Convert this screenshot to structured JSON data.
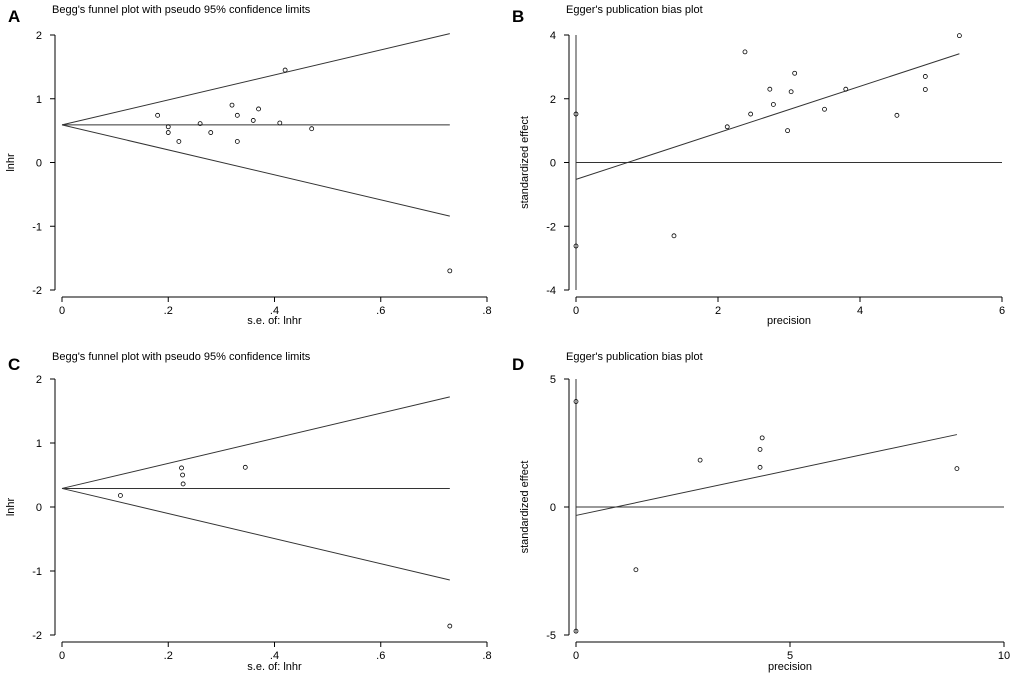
{
  "chart_data": [
    {
      "id": "A",
      "type": "scatter",
      "panel_label": "A",
      "title": "Begg's funnel plot with pseudo 95% confidence limits",
      "xlabel": "s.e. of: lnhr",
      "ylabel": "lnhr",
      "xlim": [
        0,
        0.8
      ],
      "ylim": [
        -2,
        2
      ],
      "xticks": [
        0,
        0.2,
        0.4,
        0.6,
        0.8
      ],
      "xtick_labels": [
        "0",
        ".2",
        ".4",
        ".6",
        ".8"
      ],
      "yticks": [
        -2,
        -1,
        0,
        1,
        2
      ],
      "ytick_labels": [
        "-2",
        "-1",
        "0",
        "1",
        "2"
      ],
      "pooled": 0.59,
      "funnel_se_max": 0.73,
      "points": [
        {
          "x": 0.18,
          "y": 0.74
        },
        {
          "x": 0.2,
          "y": 0.56
        },
        {
          "x": 0.2,
          "y": 0.47
        },
        {
          "x": 0.22,
          "y": 0.33
        },
        {
          "x": 0.26,
          "y": 0.61
        },
        {
          "x": 0.28,
          "y": 0.47
        },
        {
          "x": 0.32,
          "y": 0.9
        },
        {
          "x": 0.33,
          "y": 0.74
        },
        {
          "x": 0.33,
          "y": 0.33
        },
        {
          "x": 0.36,
          "y": 0.66
        },
        {
          "x": 0.37,
          "y": 0.84
        },
        {
          "x": 0.41,
          "y": 0.62
        },
        {
          "x": 0.42,
          "y": 1.45
        },
        {
          "x": 0.47,
          "y": 0.53
        },
        {
          "x": 0.73,
          "y": -1.7
        }
      ]
    },
    {
      "id": "B",
      "type": "scatter",
      "panel_label": "B",
      "title": "Egger's publication bias plot",
      "xlabel": "precision",
      "ylabel": "standardized effect",
      "xlim": [
        0,
        6
      ],
      "ylim": [
        -4,
        4
      ],
      "xticks": [
        0,
        2,
        4,
        6
      ],
      "xtick_labels": [
        "0",
        "2",
        "4",
        "6"
      ],
      "yticks": [
        -4,
        -2,
        0,
        2,
        4
      ],
      "ytick_labels": [
        "-4",
        "-2",
        "0",
        "2",
        "4"
      ],
      "ci_bar": {
        "x": 0,
        "y_low": -4.0,
        "y_high": 4.0
      },
      "regression": {
        "intercept": -0.53,
        "slope": 0.73,
        "x_start": 0,
        "x_end": 5.4
      },
      "points": [
        {
          "x": 0.0,
          "y": 1.52
        },
        {
          "x": 0.0,
          "y": -2.62
        },
        {
          "x": 1.38,
          "y": -2.3
        },
        {
          "x": 2.13,
          "y": 1.12
        },
        {
          "x": 2.38,
          "y": 3.47
        },
        {
          "x": 2.46,
          "y": 1.52
        },
        {
          "x": 2.73,
          "y": 2.3
        },
        {
          "x": 2.78,
          "y": 1.82
        },
        {
          "x": 2.98,
          "y": 1.0
        },
        {
          "x": 3.03,
          "y": 2.22
        },
        {
          "x": 3.08,
          "y": 2.8
        },
        {
          "x": 3.5,
          "y": 1.67
        },
        {
          "x": 3.8,
          "y": 2.3
        },
        {
          "x": 4.52,
          "y": 1.48
        },
        {
          "x": 4.92,
          "y": 2.7
        },
        {
          "x": 4.92,
          "y": 2.29
        },
        {
          "x": 5.4,
          "y": 3.98
        }
      ]
    },
    {
      "id": "C",
      "type": "scatter",
      "panel_label": "C",
      "title": "Begg's funnel plot with pseudo 95% confidence limits",
      "xlabel": "s.e. of: lnhr",
      "ylabel": "lnhr",
      "xlim": [
        0,
        0.8
      ],
      "ylim": [
        -2,
        2
      ],
      "xticks": [
        0,
        0.2,
        0.4,
        0.6,
        0.8
      ],
      "xtick_labels": [
        "0",
        ".2",
        ".4",
        ".6",
        ".8"
      ],
      "yticks": [
        -2,
        -1,
        0,
        1,
        2
      ],
      "ytick_labels": [
        "-2",
        "-1",
        "0",
        "1",
        "2"
      ],
      "pooled": 0.29,
      "funnel_se_max": 0.73,
      "points": [
        {
          "x": 0.11,
          "y": 0.18
        },
        {
          "x": 0.225,
          "y": 0.61
        },
        {
          "x": 0.227,
          "y": 0.5
        },
        {
          "x": 0.228,
          "y": 0.36
        },
        {
          "x": 0.345,
          "y": 0.62
        },
        {
          "x": 0.73,
          "y": -1.86
        }
      ]
    },
    {
      "id": "D",
      "type": "scatter",
      "panel_label": "D",
      "title": "Egger's publication bias plot",
      "xlabel": "precision",
      "ylabel": "standardized effect",
      "xlim": [
        0,
        10
      ],
      "ylim": [
        -5,
        5
      ],
      "xticks": [
        0,
        5,
        10
      ],
      "xtick_labels": [
        "0",
        "5",
        "10"
      ],
      "yticks": [
        -5,
        0,
        5
      ],
      "ytick_labels": [
        "-5",
        "0",
        "5"
      ],
      "ci_bar": {
        "x": 0,
        "y_low": -4.9,
        "y_high": 5.0
      },
      "regression": {
        "intercept": -0.33,
        "slope": 0.355,
        "x_start": 0,
        "x_end": 8.9
      },
      "points": [
        {
          "x": 0.0,
          "y": 4.12
        },
        {
          "x": 0.0,
          "y": -4.85
        },
        {
          "x": 1.4,
          "y": -2.45
        },
        {
          "x": 2.9,
          "y": 1.83
        },
        {
          "x": 4.3,
          "y": 2.25
        },
        {
          "x": 4.35,
          "y": 2.7
        },
        {
          "x": 4.3,
          "y": 1.55
        },
        {
          "x": 8.9,
          "y": 1.5
        }
      ]
    }
  ]
}
